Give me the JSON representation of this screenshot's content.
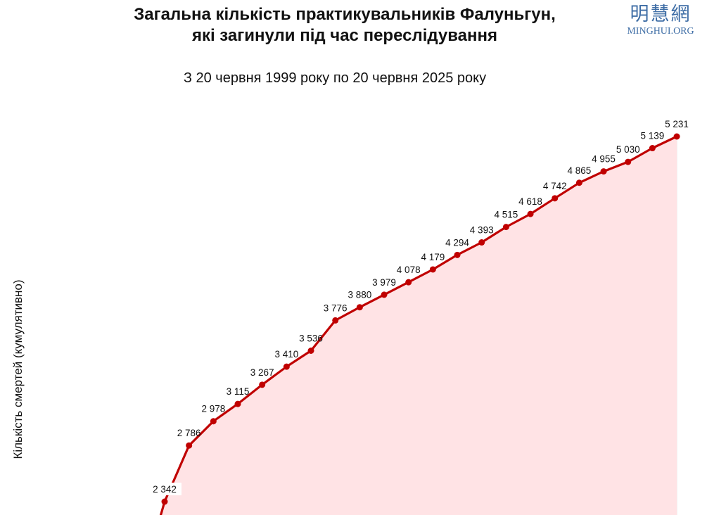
{
  "title_line1": "Загальна кількість практикувальників Фалуньгун,",
  "title_line2": "які загинули під час переслідування",
  "subtitle": "З 20 червня 1999 року по 20 червня 2025 року",
  "logo": {
    "cn": "明慧網",
    "en": "MINGHUI.ORG"
  },
  "colors": {
    "line": "#c00000",
    "fill": "#ffe3e5",
    "grid": "#e9e9e9",
    "text": "#111111",
    "logo": "#3f6ea6"
  },
  "chart_data": {
    "type": "area",
    "title": "Загальна кількість практикувальників Фалуньгун, які загинули під час переслідування",
    "subtitle": "З 20 червня 1999 року по 20 червня 2025 року",
    "ylabel": "Кількість смертей (кумулятивно)",
    "grid": "vertical",
    "series": [
      {
        "values": [
          2342,
          2786,
          2978,
          3115,
          3267,
          3410,
          3536,
          3776,
          3880,
          3979,
          4078,
          4179,
          4294,
          4393,
          4515,
          4618,
          4742,
          4865,
          4955,
          5030,
          5139,
          5231
        ],
        "labels": [
          "2 342",
          "2 786",
          "2 978",
          "3 115",
          "3 267",
          "3 410",
          "3 536",
          "3 776",
          "3 880",
          "3 979",
          "4 078",
          "4 179",
          "4 294",
          "4 393",
          "4 515",
          "4 618",
          "4 742",
          "4 865",
          "4 955",
          "5 030",
          "5 139",
          "5 231"
        ]
      }
    ]
  }
}
